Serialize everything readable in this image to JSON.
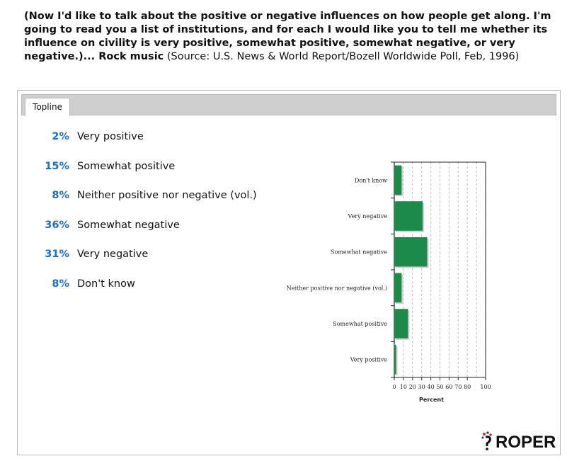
{
  "question": {
    "text": "(Now I'd like to talk about the positive or negative influences on how people get along. I'm going to read you a list of institutions, and for each I would like you to tell me whether its influence on civility is very positive, somewhat positive, somewhat negative, or very negative.)... Rock music",
    "source": " (Source: U.S. News & World Report/Bozell Worldwide Poll, Feb, 1996)"
  },
  "tabs": [
    {
      "label": "Topline"
    }
  ],
  "topline": [
    {
      "pct": "2%",
      "label": "Very positive"
    },
    {
      "pct": "15%",
      "label": "Somewhat positive"
    },
    {
      "pct": "8%",
      "label": "Neither positive nor negative (vol.)"
    },
    {
      "pct": "36%",
      "label": "Somewhat negative"
    },
    {
      "pct": "31%",
      "label": "Very negative"
    },
    {
      "pct": "8%",
      "label": "Don't know"
    }
  ],
  "colors": {
    "bar": "#1b8a4b",
    "pct_text": "#1e6db5"
  },
  "logo": {
    "text": "ROPER",
    "icon": "roper-logo-icon"
  },
  "chart_data": {
    "type": "bar",
    "orientation": "horizontal",
    "categories": [
      "Don't know",
      "Very negative",
      "Somewhat negative",
      "Neither positive nor negative (vol.)",
      "Somewhat positive",
      "Very positive"
    ],
    "values": [
      8,
      31,
      36,
      8,
      15,
      2
    ],
    "xlabel": "Percent",
    "ylabel": "",
    "xlim": [
      0,
      100
    ],
    "xticks": [
      "0",
      "10",
      "20",
      "30",
      "40",
      "50",
      "60",
      "70",
      "80",
      "100"
    ],
    "grid": true
  }
}
